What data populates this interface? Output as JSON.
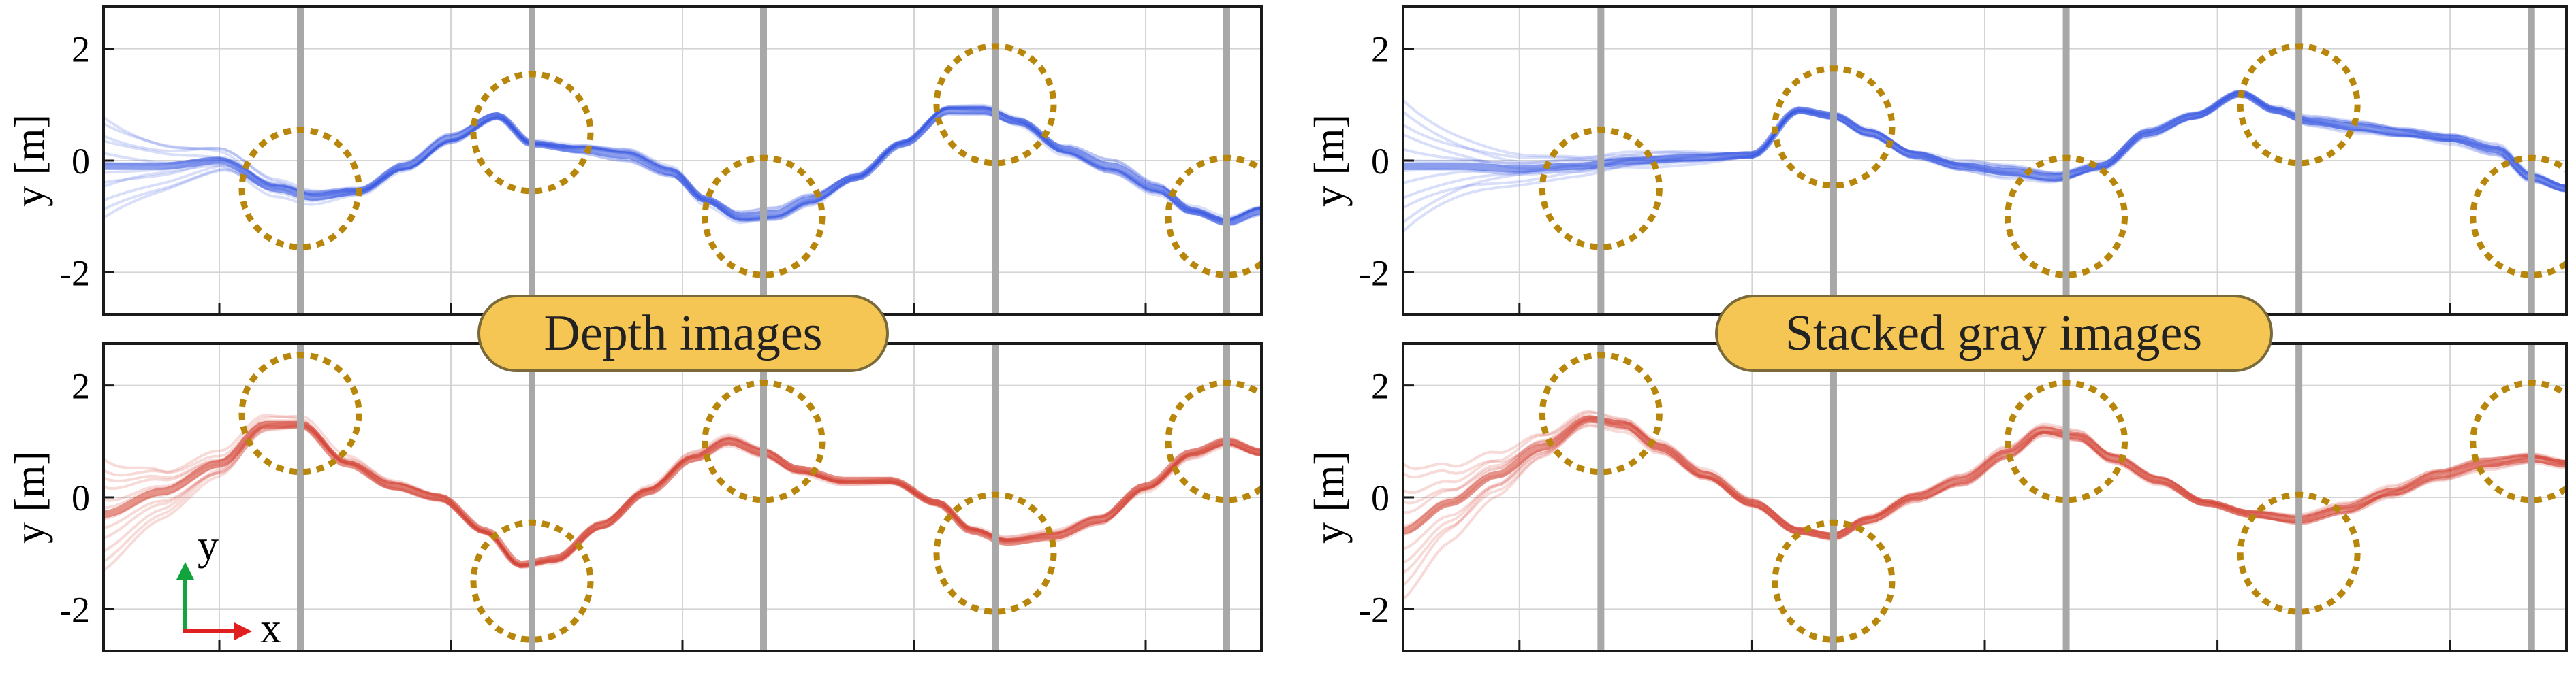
{
  "colors": {
    "blue_traj": "#2b4fe0",
    "red_traj": "#d23a2a",
    "gate_line": "#a8a8a8",
    "circle": "#b8860b",
    "badge_fill": "#f6c654",
    "badge_stroke": "#7a6a3a",
    "grid": "#d4d4d4",
    "axis_x_arrow": "#e02020",
    "axis_y_arrow": "#13a33c"
  },
  "badges": {
    "left": "Depth images",
    "right": "Stacked gray images"
  },
  "axis_icon": {
    "x_label": "x",
    "y_label": "y"
  },
  "chart_data": [
    {
      "id": "top-left",
      "type": "line",
      "series_color": "blue_traj",
      "ylabel": "y [m]",
      "yticks": [
        2,
        0,
        -2
      ],
      "ytick_labels": [
        "2",
        "0",
        "-2"
      ],
      "ylim": [
        -2.75,
        2.75
      ],
      "xlim": [
        0,
        10
      ],
      "grid": true,
      "gates_x": [
        1.7,
        3.7,
        5.7,
        7.7,
        9.7
      ],
      "circles": [
        {
          "x": 1.7,
          "y": -0.5
        },
        {
          "x": 3.7,
          "y": 0.5
        },
        {
          "x": 5.7,
          "y": -1.0
        },
        {
          "x": 7.7,
          "y": 1.0
        },
        {
          "x": 9.7,
          "y": -1.0
        }
      ],
      "trajectory": {
        "x": [
          0.0,
          0.5,
          1.0,
          1.5,
          1.8,
          2.2,
          2.6,
          3.0,
          3.4,
          3.7,
          4.1,
          4.5,
          4.9,
          5.2,
          5.5,
          5.8,
          6.1,
          6.5,
          6.9,
          7.3,
          7.6,
          7.9,
          8.3,
          8.7,
          9.1,
          9.4,
          9.7,
          10.0
        ],
        "y": [
          -0.1,
          -0.1,
          0.0,
          -0.5,
          -0.65,
          -0.55,
          -0.1,
          0.4,
          0.8,
          0.3,
          0.2,
          0.1,
          -0.2,
          -0.7,
          -1.0,
          -0.95,
          -0.7,
          -0.3,
          0.3,
          0.9,
          0.9,
          0.7,
          0.2,
          -0.1,
          -0.5,
          -0.9,
          -1.1,
          -0.9
        ]
      },
      "spread_start": 0.9,
      "bundle_count": 12
    },
    {
      "id": "top-right",
      "type": "line",
      "series_color": "blue_traj",
      "ylabel": "y [m]",
      "yticks": [
        2,
        0,
        -2
      ],
      "ytick_labels": [
        "2",
        "0",
        "-2"
      ],
      "ylim": [
        -2.75,
        2.75
      ],
      "xlim": [
        0,
        10
      ],
      "grid": true,
      "gates_x": [
        1.7,
        3.7,
        5.7,
        7.7,
        9.7
      ],
      "circles": [
        {
          "x": 1.7,
          "y": -0.5
        },
        {
          "x": 3.7,
          "y": 0.6
        },
        {
          "x": 5.7,
          "y": -1.0
        },
        {
          "x": 7.7,
          "y": 1.0
        },
        {
          "x": 9.7,
          "y": -1.0
        }
      ],
      "trajectory": {
        "x": [
          0.0,
          0.5,
          1.0,
          1.5,
          2.0,
          2.5,
          3.0,
          3.4,
          3.7,
          4.0,
          4.4,
          4.8,
          5.2,
          5.6,
          6.0,
          6.4,
          6.8,
          7.2,
          7.5,
          7.8,
          8.2,
          8.6,
          9.0,
          9.4,
          9.7,
          10.0
        ],
        "y": [
          -0.1,
          -0.1,
          -0.15,
          -0.1,
          0.0,
          0.05,
          0.1,
          0.9,
          0.8,
          0.5,
          0.1,
          -0.1,
          -0.2,
          -0.3,
          -0.1,
          0.5,
          0.8,
          1.2,
          0.9,
          0.7,
          0.6,
          0.5,
          0.4,
          0.2,
          -0.3,
          -0.5
        ]
      },
      "spread_start": 1.2,
      "bundle_count": 12
    },
    {
      "id": "bottom-left",
      "type": "line",
      "series_color": "red_traj",
      "ylabel": "y [m]",
      "yticks": [
        2,
        0,
        -2
      ],
      "ytick_labels": [
        "2",
        "0",
        "-2"
      ],
      "ylim": [
        -2.75,
        2.75
      ],
      "xlim": [
        0,
        10
      ],
      "grid": true,
      "gates_x": [
        1.7,
        3.7,
        5.7,
        7.7,
        9.7
      ],
      "circles": [
        {
          "x": 1.7,
          "y": 1.5
        },
        {
          "x": 3.7,
          "y": -1.5
        },
        {
          "x": 5.7,
          "y": 1.0
        },
        {
          "x": 7.7,
          "y": -1.0
        },
        {
          "x": 9.7,
          "y": 1.0
        }
      ],
      "trajectory": {
        "x": [
          0.0,
          0.5,
          1.0,
          1.4,
          1.7,
          2.1,
          2.5,
          2.9,
          3.3,
          3.6,
          3.9,
          4.3,
          4.7,
          5.1,
          5.4,
          5.7,
          6.0,
          6.4,
          6.8,
          7.2,
          7.5,
          7.8,
          8.2,
          8.6,
          9.0,
          9.4,
          9.7,
          10.0
        ],
        "y": [
          -0.3,
          0.1,
          0.6,
          1.3,
          1.3,
          0.6,
          0.2,
          0.0,
          -0.6,
          -1.2,
          -1.1,
          -0.5,
          0.1,
          0.7,
          1.0,
          0.8,
          0.5,
          0.3,
          0.3,
          -0.1,
          -0.6,
          -0.8,
          -0.7,
          -0.4,
          0.2,
          0.8,
          1.0,
          0.8
        ]
      },
      "spread_start": 1.0,
      "bundle_count": 12
    },
    {
      "id": "bottom-right",
      "type": "line",
      "series_color": "red_traj",
      "ylabel": "y [m]",
      "yticks": [
        2,
        0,
        -2
      ],
      "ytick_labels": [
        "2",
        "0",
        "-2"
      ],
      "ylim": [
        -2.75,
        2.75
      ],
      "xlim": [
        0,
        10
      ],
      "grid": true,
      "gates_x": [
        1.7,
        3.7,
        5.7,
        7.7,
        9.7
      ],
      "circles": [
        {
          "x": 1.7,
          "y": 1.5
        },
        {
          "x": 3.7,
          "y": -1.5
        },
        {
          "x": 5.7,
          "y": 1.0
        },
        {
          "x": 7.7,
          "y": -1.0
        },
        {
          "x": 9.7,
          "y": 1.0
        }
      ],
      "trajectory": {
        "x": [
          0.0,
          0.4,
          0.8,
          1.2,
          1.6,
          1.9,
          2.2,
          2.6,
          3.0,
          3.4,
          3.7,
          4.0,
          4.4,
          4.8,
          5.2,
          5.5,
          5.8,
          6.1,
          6.5,
          6.9,
          7.3,
          7.7,
          8.1,
          8.5,
          8.9,
          9.3,
          9.7,
          10.0
        ],
        "y": [
          -0.6,
          -0.1,
          0.4,
          0.9,
          1.4,
          1.3,
          0.9,
          0.4,
          -0.1,
          -0.6,
          -0.7,
          -0.4,
          0.0,
          0.3,
          0.8,
          1.2,
          1.1,
          0.7,
          0.3,
          -0.1,
          -0.3,
          -0.4,
          -0.2,
          0.1,
          0.4,
          0.6,
          0.7,
          0.6
        ]
      },
      "spread_start": 1.2,
      "bundle_count": 12
    }
  ]
}
